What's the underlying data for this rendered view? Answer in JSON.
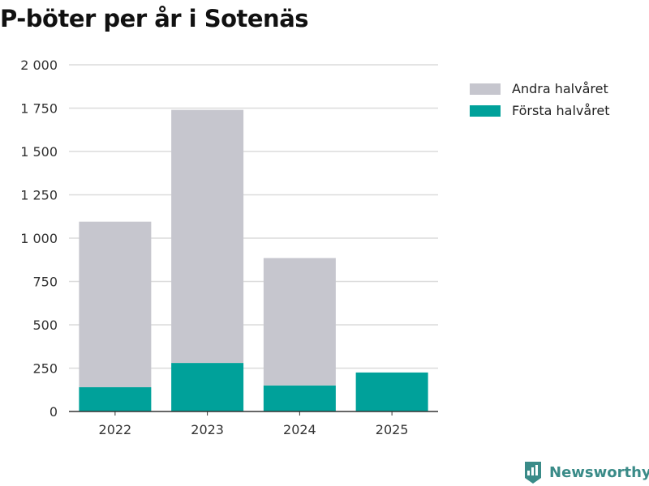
{
  "title": "P-böter per år i Sotenäs",
  "brand": {
    "name": "Newsworthy",
    "icon": "newsworthy-logo-icon",
    "color": "#3a8b88"
  },
  "chart_data": {
    "type": "bar",
    "stacked": true,
    "title": "P-böter per år i Sotenäs",
    "categories": [
      "2022",
      "2023",
      "2024",
      "2025"
    ],
    "series": [
      {
        "name": "Första halvåret",
        "color": "#00a19a",
        "values": [
          140,
          280,
          150,
          225
        ]
      },
      {
        "name": "Andra halvåret",
        "color": "#c6c6ce",
        "values": [
          955,
          1460,
          735,
          null
        ]
      }
    ],
    "ylim": [
      0,
      2000
    ],
    "yticks": [
      0,
      250,
      500,
      750,
      1000,
      1250,
      1500,
      1750,
      2000
    ],
    "ytick_labels": [
      "0",
      "250",
      "500",
      "750",
      "1 000",
      "1 250",
      "1 500",
      "1 750",
      "2 000"
    ],
    "grid": true,
    "legend": {
      "position": "right",
      "order": [
        "Andra halvåret",
        "Första halvåret"
      ]
    }
  }
}
